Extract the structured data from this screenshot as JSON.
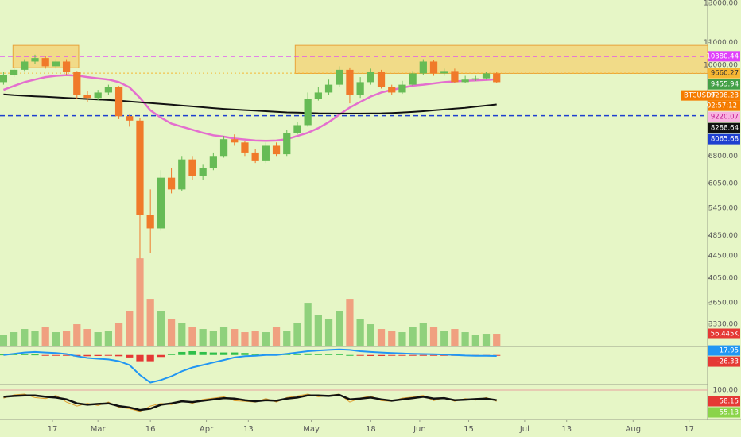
{
  "chart_data": {
    "type": "candlestick",
    "symbol": "BTCUSDT",
    "up_color": "#66bb55",
    "down_color": "#f07a2a",
    "x": [
      -27,
      -24,
      -21,
      -18,
      -15,
      -12,
      -9,
      -6,
      -3,
      0,
      3,
      6,
      9,
      12,
      15,
      18,
      21,
      24,
      27,
      30,
      33,
      36,
      39,
      42,
      45,
      48,
      51,
      54,
      57,
      60,
      63,
      66,
      69,
      72,
      75,
      78,
      81,
      84,
      87,
      90,
      93,
      96,
      99,
      102,
      105,
      108,
      111,
      114
    ],
    "open": [
      9300,
      9600,
      9800,
      10150,
      10300,
      9950,
      10150,
      9700,
      8800,
      8700,
      8900,
      9100,
      8050,
      7900,
      5300,
      5000,
      6200,
      5900,
      6700,
      6250,
      6450,
      6800,
      7300,
      7200,
      6900,
      6650,
      7100,
      6850,
      7500,
      7750,
      8650,
      8900,
      9200,
      9800,
      8800,
      9300,
      9700,
      9100,
      8900,
      9200,
      9650,
      10150,
      9650,
      9750,
      9300,
      9400,
      9450,
      9650
    ],
    "high": [
      9700,
      9900,
      10250,
      10450,
      10400,
      10250,
      10250,
      9750,
      8950,
      9000,
      9200,
      9150,
      8100,
      8000,
      5900,
      6400,
      6450,
      6800,
      6800,
      6550,
      6900,
      7400,
      7450,
      7250,
      7000,
      7200,
      7200,
      7600,
      7850,
      8900,
      9100,
      9400,
      9950,
      9900,
      9500,
      9850,
      9800,
      9200,
      9350,
      9750,
      10250,
      10200,
      9850,
      9850,
      9550,
      9550,
      9700,
      9700
    ],
    "low": [
      9200,
      9500,
      9750,
      10050,
      9850,
      9850,
      9600,
      8650,
      8550,
      8600,
      8800,
      7950,
      7700,
      4400,
      4500,
      4950,
      5800,
      5850,
      6150,
      6150,
      6400,
      6750,
      7100,
      6800,
      6600,
      6600,
      6800,
      6800,
      7450,
      7700,
      8600,
      8800,
      9100,
      8500,
      8700,
      9200,
      9050,
      8800,
      8850,
      9150,
      9600,
      9550,
      9550,
      9250,
      9250,
      9350,
      9400,
      9250
    ],
    "close": [
      9600,
      9800,
      10150,
      10300,
      9950,
      10150,
      9700,
      8800,
      8700,
      8900,
      9100,
      8050,
      7900,
      5300,
      5000,
      6200,
      5900,
      6700,
      6250,
      6450,
      6800,
      7300,
      7200,
      6900,
      6650,
      7100,
      6850,
      7500,
      7750,
      8650,
      8900,
      9200,
      9800,
      8800,
      9300,
      9700,
      9100,
      8900,
      9200,
      9650,
      10150,
      9650,
      9750,
      9300,
      9400,
      9450,
      9650,
      9298.23
    ],
    "xlim": [
      -28,
      174.3
    ],
    "xticks": [
      {
        "value": -13,
        "label": "17"
      },
      {
        "value": 0,
        "label": "Mar"
      },
      {
        "value": 15,
        "label": "16"
      },
      {
        "value": 31,
        "label": "Apr"
      },
      {
        "value": 43,
        "label": "13"
      },
      {
        "value": 61,
        "label": "May"
      },
      {
        "value": 78,
        "label": "18"
      },
      {
        "value": 92,
        "label": "Jun"
      },
      {
        "value": 106,
        "label": "15"
      },
      {
        "value": 122,
        "label": "Jul"
      },
      {
        "value": 134,
        "label": "13"
      },
      {
        "value": 153,
        "label": "Aug"
      },
      {
        "value": 169,
        "label": "17"
      }
    ],
    "ylim": [
      3030,
      13180
    ],
    "log_scale": true,
    "yticks": [
      {
        "value": 13000,
        "label": "13000.00"
      },
      {
        "value": 11000,
        "label": "11000.00"
      },
      {
        "value": 10000,
        "label": "10000.00"
      },
      {
        "value": 6800,
        "label": "6800.00"
      },
      {
        "value": 6050,
        "label": "6050.00"
      },
      {
        "value": 5450,
        "label": "5450.00"
      },
      {
        "value": 4850,
        "label": "4850.00"
      },
      {
        "value": 4450,
        "label": "4450.00"
      },
      {
        "value": 4050,
        "label": "4050.00"
      },
      {
        "value": 3650,
        "label": "3650.00"
      },
      {
        "value": 3330,
        "label": "3330.00"
      }
    ],
    "overlays": [
      {
        "color": "#e46fcf",
        "values": [
          9000,
          9150,
          9300,
          9400,
          9500,
          9550,
          9580,
          9560,
          9500,
          9450,
          9400,
          9300,
          9100,
          8700,
          8250,
          8000,
          7800,
          7700,
          7600,
          7500,
          7420,
          7380,
          7320,
          7290,
          7260,
          7250,
          7260,
          7300,
          7400,
          7500,
          7650,
          7850,
          8100,
          8350,
          8550,
          8750,
          8900,
          9000,
          9080,
          9160,
          9200,
          9250,
          9300,
          9330,
          9350,
          9370,
          9390,
          9410
        ]
      },
      {
        "color": "#111111",
        "values": [
          8830,
          8800,
          8780,
          8760,
          8740,
          8720,
          8700,
          8680,
          8660,
          8640,
          8620,
          8600,
          8570,
          8540,
          8510,
          8480,
          8450,
          8420,
          8390,
          8360,
          8330,
          8300,
          8280,
          8260,
          8240,
          8220,
          8200,
          8180,
          8170,
          8160,
          8150,
          8145,
          8140,
          8140,
          8140,
          8145,
          8150,
          8160,
          8175,
          8195,
          8220,
          8250,
          8280,
          8310,
          8340,
          8380,
          8420,
          8460
        ]
      }
    ],
    "zones": [
      {
        "x": [
          -24.3,
          -5.5
        ],
        "y": [
          9885,
          10870
        ]
      },
      {
        "x": [
          56.4,
          174.3
        ],
        "y": [
          9650,
          10870
        ]
      }
    ],
    "price_labels": [
      {
        "value": 10380.44,
        "color": "#e040fb",
        "text_color": "#ffffff",
        "line": "dashed"
      },
      {
        "value": 9660.27,
        "color": "#f7b733",
        "text_color": "#333333",
        "line": "dotted"
      },
      {
        "value": 9455.94,
        "color": "#43a047",
        "text_color": "#ffffff"
      },
      {
        "value": 9298.23,
        "symbol": "BTCUSDT",
        "countdown": "02:57:12",
        "color": "#f57c00",
        "text_color": "#ffffff"
      },
      {
        "value": 9220.07,
        "color": "#f8b4e0",
        "text_color": "#c2188f"
      },
      {
        "value": 8288.64,
        "color": "#111111",
        "text_color": "#ffffff"
      },
      {
        "value": 8065.68,
        "color": "#1e3fd0",
        "text_color": "#ffffff",
        "line": "dashed"
      }
    ],
    "volume": {
      "lim": [
        0,
        1540000
      ],
      "values": [
        53000,
        63500,
        77600,
        70600,
        88200,
        63500,
        70600,
        98800,
        77600,
        63500,
        70600,
        105800,
        158800,
        391600,
        211700,
        158800,
        123500,
        105800,
        88200,
        77600,
        70600,
        88200,
        77600,
        63500,
        70600,
        63500,
        88200,
        70600,
        105800,
        194000,
        141100,
        123500,
        158800,
        211700,
        123500,
        98800,
        77600,
        70600,
        63500,
        88200,
        105800,
        88200,
        70600,
        77600,
        63500,
        53000,
        56400,
        56445
      ],
      "label": {
        "value": 56445,
        "label": "56.445K",
        "color": "#e53935"
      }
    },
    "macd": {
      "ylim": [
        -118,
        34
      ],
      "color": "#2196f3",
      "values": [
        0,
        5,
        10,
        12,
        10,
        8,
        4,
        -5,
        -12,
        -15,
        -18,
        -25,
        -40,
        -80,
        -110,
        -100,
        -85,
        -65,
        -50,
        -40,
        -30,
        -20,
        -10,
        -5,
        -3,
        0,
        0,
        5,
        10,
        15,
        18,
        20,
        22,
        20,
        15,
        12,
        10,
        8,
        6,
        5,
        4,
        3,
        2,
        0,
        -2,
        -3,
        -3,
        -4
      ],
      "histogram": [
        2,
        3,
        3,
        2,
        -1,
        -2,
        -3,
        -6,
        -5,
        -4,
        -3,
        -5,
        -10,
        -25,
        -25,
        -8,
        5,
        12,
        15,
        12,
        10,
        10,
        10,
        8,
        5,
        4,
        3,
        4,
        5,
        6,
        5,
        4,
        3,
        0,
        -3,
        -4,
        -4,
        -3,
        -3,
        -2,
        -1,
        -1,
        -1,
        -2,
        -2,
        -2,
        -1,
        -1
      ],
      "labels": [
        {
          "value": 17.95,
          "color": "#2196f3"
        },
        {
          "value": -26.33,
          "color": "#e53935"
        }
      ]
    },
    "oscillator": {
      "ylim": [
        -10.6,
        121
      ],
      "yticks": [
        {
          "value": 100,
          "label": "100.00"
        }
      ],
      "series": [
        {
          "color": "#111111",
          "values": [
            75,
            78,
            80,
            80,
            75,
            72,
            65,
            50,
            45,
            48,
            50,
            40,
            35,
            25,
            30,
            45,
            50,
            58,
            55,
            60,
            65,
            70,
            68,
            62,
            58,
            62,
            60,
            68,
            72,
            80,
            80,
            78,
            82,
            65,
            68,
            72,
            65,
            60,
            65,
            70,
            75,
            68,
            70,
            62,
            64,
            66,
            68,
            62
          ]
        },
        {
          "color": "#e0a030",
          "values": [
            70,
            82,
            85,
            72,
            68,
            80,
            55,
            40,
            50,
            42,
            55,
            35,
            30,
            20,
            40,
            50,
            45,
            62,
            50,
            65,
            70,
            75,
            60,
            58,
            55,
            68,
            55,
            72,
            78,
            85,
            75,
            80,
            85,
            55,
            70,
            78,
            60,
            58,
            70,
            74,
            80,
            60,
            72,
            58,
            68,
            62,
            72,
            58
          ]
        }
      ],
      "labels": [
        {
          "value": 58.15,
          "color": "#e53935"
        },
        {
          "value": 55.13,
          "color": "#8bd44a"
        }
      ]
    }
  }
}
